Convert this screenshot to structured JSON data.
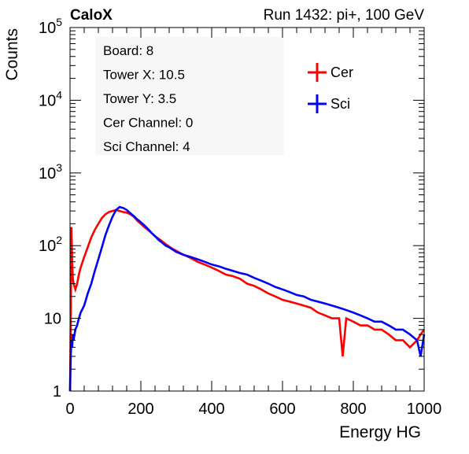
{
  "header": {
    "brand": "CaloX",
    "run_info": "Run 1432: pi+, 100 GeV"
  },
  "info_box": {
    "lines": [
      "Board: 8",
      "Tower X: 10.5",
      "Tower Y: 3.5",
      "Cer Channel: 0",
      "Sci Channel: 4"
    ]
  },
  "chart_data": {
    "type": "line",
    "title": "",
    "xlabel": "Energy HG",
    "ylabel": "Counts",
    "xlim": [
      0,
      1000
    ],
    "ylim": [
      1,
      100000
    ],
    "yscale": "log",
    "grid": false,
    "legend_position": "top-right",
    "x_ticks": [
      0,
      200,
      400,
      600,
      800,
      1000
    ],
    "y_ticks": [
      1,
      10,
      100,
      1000,
      10000,
      100000
    ],
    "y_tick_labels": [
      {
        "base": "1",
        "exp": ""
      },
      {
        "base": "10",
        "exp": ""
      },
      {
        "base": "10",
        "exp": "2"
      },
      {
        "base": "10",
        "exp": "3"
      },
      {
        "base": "10",
        "exp": "4"
      },
      {
        "base": "10",
        "exp": "5"
      }
    ],
    "series": [
      {
        "name": "Cer",
        "color": "#ff0000",
        "x": [
          0,
          2,
          4,
          6,
          8,
          10,
          15,
          20,
          25,
          30,
          40,
          50,
          60,
          70,
          80,
          90,
          100,
          110,
          120,
          130,
          140,
          150,
          160,
          170,
          180,
          190,
          200,
          210,
          220,
          230,
          240,
          250,
          260,
          270,
          280,
          290,
          300,
          320,
          340,
          360,
          380,
          400,
          420,
          440,
          460,
          480,
          500,
          520,
          540,
          560,
          580,
          600,
          620,
          640,
          660,
          680,
          700,
          720,
          740,
          760,
          770,
          780,
          800,
          820,
          840,
          860,
          880,
          900,
          920,
          940,
          960,
          980,
          990,
          1000
        ],
        "y": [
          1,
          10,
          180,
          60,
          35,
          30,
          25,
          30,
          40,
          50,
          70,
          95,
          130,
          165,
          200,
          240,
          270,
          290,
          300,
          310,
          300,
          290,
          285,
          270,
          250,
          220,
          200,
          180,
          165,
          150,
          135,
          125,
          115,
          105,
          97,
          90,
          85,
          75,
          68,
          60,
          55,
          50,
          45,
          40,
          38,
          35,
          30,
          28,
          25,
          22,
          20,
          18,
          17,
          16,
          15,
          14,
          12,
          11,
          10,
          10,
          3,
          10,
          9,
          8,
          8,
          7,
          7,
          6,
          5,
          5,
          4,
          5,
          6,
          7
        ]
      },
      {
        "name": "Sci",
        "color": "#0000ff",
        "x": [
          0,
          2,
          4,
          6,
          8,
          10,
          15,
          20,
          25,
          30,
          40,
          50,
          60,
          70,
          80,
          90,
          100,
          110,
          120,
          130,
          140,
          150,
          160,
          170,
          180,
          190,
          200,
          210,
          220,
          230,
          240,
          250,
          260,
          270,
          280,
          290,
          300,
          320,
          340,
          360,
          380,
          400,
          420,
          440,
          460,
          480,
          500,
          520,
          540,
          560,
          580,
          600,
          620,
          640,
          660,
          680,
          700,
          720,
          740,
          760,
          780,
          800,
          820,
          840,
          860,
          880,
          900,
          920,
          940,
          960,
          980,
          990,
          1000
        ],
        "y": [
          1,
          3,
          5,
          4,
          6,
          5,
          7,
          8,
          10,
          12,
          15,
          22,
          30,
          45,
          65,
          95,
          140,
          190,
          250,
          310,
          340,
          330,
          310,
          280,
          255,
          230,
          210,
          190,
          170,
          150,
          135,
          120,
          110,
          100,
          95,
          88,
          82,
          75,
          70,
          65,
          60,
          55,
          52,
          48,
          45,
          42,
          40,
          36,
          33,
          30,
          27,
          25,
          23,
          21,
          20,
          18,
          17,
          16,
          15,
          14,
          13,
          12,
          11,
          10,
          9,
          9,
          8,
          7,
          7,
          6,
          5,
          3,
          6
        ]
      }
    ]
  }
}
